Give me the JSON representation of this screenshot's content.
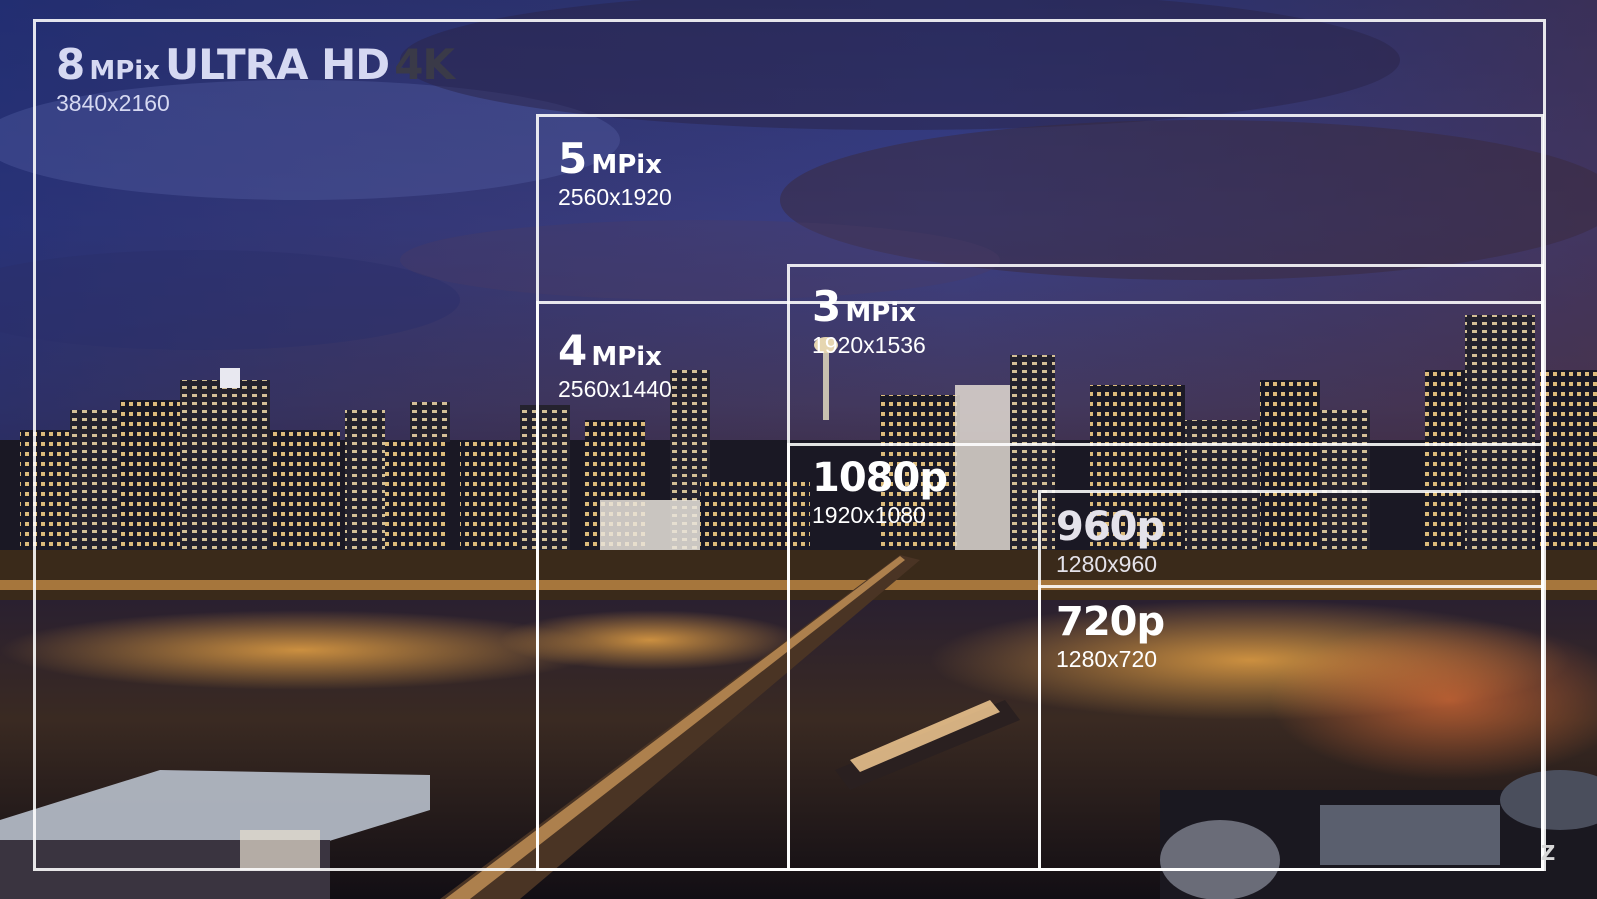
{
  "tiers": [
    {
      "prefix": "8",
      "mp": "MPix",
      "title": "ULTRA HD",
      "suffix": "4K",
      "resolution": "3840x2160"
    },
    {
      "prefix": "5",
      "mp": "MPix",
      "resolution": "2560x1920"
    },
    {
      "prefix": "4",
      "mp": "MPix",
      "resolution": "2560x1440"
    },
    {
      "prefix": "3",
      "mp": "MPix",
      "resolution": "1920x1536"
    },
    {
      "prefix": "1080p",
      "resolution": "1920x1080"
    },
    {
      "prefix": "960p",
      "resolution": "1280x960"
    },
    {
      "prefix": "720p",
      "resolution": "1280x720"
    }
  ],
  "watermark": "Z",
  "colors": {
    "frame": "#ffffff",
    "label_primary": "#ffffff",
    "label_dim": "#d6d9f2",
    "accent_4k": "#3a3a48"
  }
}
